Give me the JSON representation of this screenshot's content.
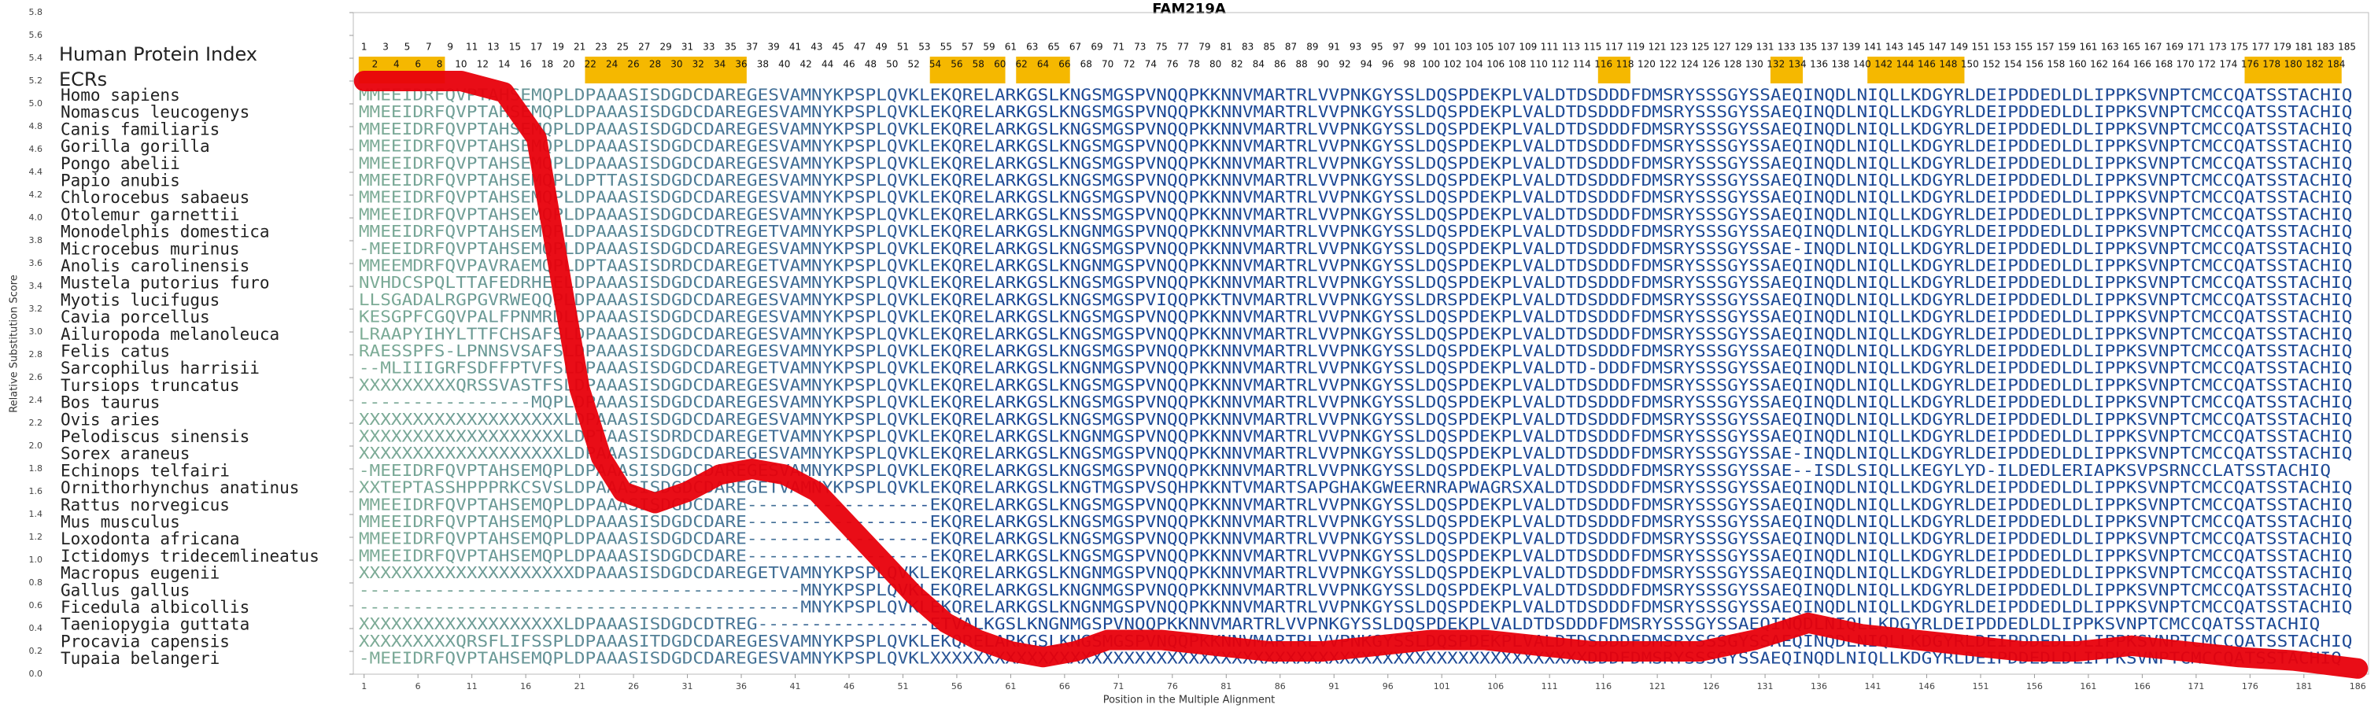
{
  "chart_data": {
    "type": "line",
    "title": "FAM219A",
    "index_title": "Human Protein Index",
    "ecr_title": "ECRs",
    "xlabel": "Position in the Multiple Alignment",
    "ylabel": "Relative Substitution Score",
    "xlim": [
      0,
      187
    ],
    "ylim": [
      0,
      5.8
    ],
    "xticks": [
      1,
      6,
      11,
      16,
      21,
      26,
      31,
      36,
      41,
      46,
      51,
      56,
      61,
      66,
      71,
      76,
      81,
      86,
      91,
      96,
      101,
      106,
      111,
      116,
      121,
      126,
      131,
      136,
      141,
      146,
      151,
      156,
      161,
      166,
      171,
      176,
      181,
      186
    ],
    "yticks": [
      {
        "value": 0,
        "label": "0.0"
      },
      {
        "value": 0.2,
        "label": "0.2"
      },
      {
        "value": 0.4,
        "label": "0.4"
      },
      {
        "value": 0.6,
        "label": "0.6"
      },
      {
        "value": 0.8,
        "label": "0.8"
      },
      {
        "value": 1,
        "label": "1.0"
      },
      {
        "value": 1.2,
        "label": "1.2"
      },
      {
        "value": 1.4,
        "label": "1.4"
      },
      {
        "value": 1.6,
        "label": "1.6"
      },
      {
        "value": 1.8,
        "label": "1.8"
      },
      {
        "value": 2,
        "label": "2.0"
      },
      {
        "value": 2.2,
        "label": "2.2"
      },
      {
        "value": 2.4,
        "label": "2.4"
      },
      {
        "value": 2.6,
        "label": "2.6"
      },
      {
        "value": 2.8,
        "label": "2.8"
      },
      {
        "value": 3,
        "label": "3.0"
      },
      {
        "value": 3.2,
        "label": "3.2"
      },
      {
        "value": 3.4,
        "label": "3.4"
      },
      {
        "value": 3.6,
        "label": "3.6"
      },
      {
        "value": 3.8,
        "label": "3.8"
      },
      {
        "value": 4,
        "label": "4.0"
      },
      {
        "value": 4.2,
        "label": "4.2"
      },
      {
        "value": 4.4,
        "label": "4.4"
      },
      {
        "value": 4.6,
        "label": "4.6"
      },
      {
        "value": 4.8,
        "label": "4.8"
      },
      {
        "value": 5,
        "label": "5.0"
      },
      {
        "value": 5.2,
        "label": "5.2"
      },
      {
        "value": 5.4,
        "label": "5.4"
      },
      {
        "value": 5.6,
        "label": "5.6"
      },
      {
        "value": 5.8,
        "label": "5.8"
      }
    ],
    "index_numbers": [
      1,
      2,
      3,
      4,
      5,
      6,
      7,
      8,
      9,
      10,
      11,
      12,
      13,
      14,
      15,
      16,
      17,
      18,
      19,
      20,
      21,
      22,
      23,
      24,
      25,
      26,
      27,
      28,
      29,
      30,
      31,
      32,
      33,
      34,
      35,
      36,
      37,
      38,
      39,
      40,
      41,
      42,
      43,
      44,
      45,
      46,
      47,
      48,
      49,
      50,
      51,
      52,
      53,
      54,
      55,
      56,
      57,
      58,
      59,
      60,
      61,
      62,
      63,
      64,
      65,
      66,
      67,
      68,
      69,
      70,
      71,
      72,
      73,
      74,
      75,
      76,
      77,
      78,
      79,
      80,
      81,
      82,
      83,
      84,
      85,
      86,
      87,
      88,
      89,
      90,
      91,
      92,
      93,
      94,
      95,
      96,
      97,
      98,
      99,
      100,
      101,
      102,
      103,
      104,
      105,
      106,
      107,
      108,
      109,
      110,
      111,
      112,
      113,
      114,
      115,
      116,
      117,
      118,
      119,
      120,
      121,
      122,
      123,
      124,
      125,
      126,
      127,
      128,
      129,
      130,
      131,
      132,
      133,
      134,
      135,
      136,
      137,
      138,
      139,
      140,
      141,
      142,
      143,
      144,
      145,
      146,
      147,
      148,
      149,
      150,
      151,
      152,
      153,
      154,
      155,
      156,
      157,
      158,
      159,
      160,
      161,
      162,
      163,
      164,
      165,
      166,
      167,
      168,
      169,
      170,
      171,
      172,
      173,
      174,
      175,
      176,
      177,
      178,
      179,
      180,
      181,
      182,
      183,
      184,
      185
    ],
    "ecrs": [
      [
        1,
        8
      ],
      [
        22,
        36
      ],
      [
        54,
        60
      ],
      [
        62,
        66
      ],
      [
        116,
        118
      ],
      [
        132,
        134
      ],
      [
        141,
        149
      ],
      [
        176,
        184
      ]
    ],
    "ecr_color": "#f5b800",
    "sequence_colors": [
      "#7fae96",
      "#1e4a96"
    ],
    "color": "#e8000b",
    "x": [
      1,
      5,
      10,
      14,
      17,
      19,
      21,
      23,
      25,
      28,
      31,
      34,
      37,
      40,
      43,
      46,
      49,
      52,
      55,
      58,
      61,
      64,
      67,
      70,
      75,
      80,
      85,
      90,
      95,
      100,
      105,
      110,
      115,
      120,
      125,
      130,
      135,
      140,
      145,
      150,
      155,
      160,
      165,
      170,
      175,
      180,
      186
    ],
    "values": [
      5.2,
      5.2,
      5.2,
      5.1,
      4.7,
      3.6,
      2.5,
      1.9,
      1.6,
      1.5,
      1.6,
      1.75,
      1.8,
      1.75,
      1.6,
      1.3,
      1.0,
      0.7,
      0.45,
      0.3,
      0.2,
      0.15,
      0.2,
      0.3,
      0.3,
      0.25,
      0.2,
      0.2,
      0.25,
      0.3,
      0.3,
      0.25,
      0.2,
      0.2,
      0.2,
      0.3,
      0.45,
      0.35,
      0.3,
      0.25,
      0.2,
      0.2,
      0.25,
      0.2,
      0.15,
      0.12,
      0.05
    ],
    "rows": [
      {
        "species": "Homo sapiens",
        "sequence": "MMEEIDRFQVPTAHSEMQPLDPAAASISDGDCDAREGESVAMNYKPSPLQVKLEKQRELARKGSLKNGSMGSPVNQQPKKNNVMARTRLVVPNKGYSSLDQSPDEKPLVALDTDSDDDFDMSRYSSSGYSSAEQINQDLNIQLLKDGYRLDEIPDDEDLDLIPPKSVNPTCMCCQATSSTACHIQ"
      },
      {
        "species": "Nomascus leucogenys",
        "sequence": "MMEEIDRFQVPTAHSEMQPLDPAAASISDGDCDAREGESVAMNYKPSPLQVKLEKQRELARKGSLKNGSMGSPVNQQPKKNNVMARTRLVVPNKGYSSLDQSPDEKPLVALDTDSDDDFDMSRYSSSGYSSAEQINQDLNIQLLKDGYRLDEIPDDEDLDLIPPKSVNPTCMCCQATSSTACHIQ"
      },
      {
        "species": "Canis familiaris",
        "sequence": "MMEEIDRFQVPTAHSEMQPLDPAAASISDGDCDAREGESVAMNYKPSPLQVKLEKQRELARKGSLKNGSMGSPVNQQPKKNNVMARTRLVVPNKGYSSLDQSPDEKPLVALDTDSDDDFDMSRYSSSGYSSAEQINQDLNIQLLKDGYRLDEIPDDEDLDLIPPKSVNPTCMCCQATSSTACHIQ"
      },
      {
        "species": "Gorilla gorilla",
        "sequence": "MMEEIDRFQVPTAHSEMQPLDPAAASISDGDCDAREGESVAMNYKPSPLQVKLEKQRELARKGSLKNGSMGSPVNQQPKKNNVMARTRLVVPNKGYSSLDQSPDEKPLVALDTDSDDDFDMSRYSSSGYSSAEQINQDLNIQLLKDGYRLDEIPDDEDLDLIPPKSVNPTCMCCQATSSTACHIQ"
      },
      {
        "species": "Pongo abelii",
        "sequence": "MMEEIDRFQVPTAHSEMQPLDPAAASISDGDCDAREGESVAMNYKPSPLQVKLEKQRELARKGSLKNGSMGSPVNQQPKKNNVMARTRLVVPNKGYSSLDQSPDEKPLVALDTDSDDDFDMSRYSSSGYSSAEQINQDLNIQLLKDGYRLDEIPDDEDLDLIPPKSVNPTCMCCQATSSTACHIQ"
      },
      {
        "species": "Papio anubis",
        "sequence": "MMEEIDRFQVPTAHSEMQPLDPTTASISDGDCDAREGESVAMNYKPSPLQVKLEKQRELARKGSLKNGSMGSPVNQQPKKNNVMARTRLVVPNKGYSSLDQSPDEKPLVALDTDSDDDFDMSRYSSSGYSSAEQINQDLNIQLLKDGYRLDEIPDDEDLDLIPPKSVNPTCMCCQATSSTACHIQ"
      },
      {
        "species": "Chlorocebus sabaeus",
        "sequence": "MMEEIDRFQVPTAHSEMQPLDPAAASISDGDCDAREGESVAMNYKPSPLQVKLEKQRELARKGSLKNGSMGSPVNQQPKKNNVMARTRLVVPNKGYSSLDQSPDEKPLVALDTDSDDDFDMSRYSSSGYSSAEQINQDLNIQLLKDGYRLDEIPDDEDLDLIPPKSVNPTCMCCQATSSTACHIQ"
      },
      {
        "species": "Otolemur garnettii",
        "sequence": "MMEEIDRFQVPTAHSEMQPLDPAAASISDGDCDAREGESVAMNYKPSPLQVKLEKQRELARKGSLKNSSMGSPVNQQPKKNNVMARTRLVVPNKGYSSLDQSPDEKPLVALDTDSDDDFDMSRYSSSGYSSAEQINQDLNIQLLKDGYRLDEIPDDEDLDLIPPKSVNPTCMCCQATSSTACHIQ"
      },
      {
        "species": "Monodelphis domestica",
        "sequence": "MMEEIDRFQVPTAHSEMQPLDPAAASISDGDCDTREGETVAMNYKPSPLQVKLEKQRELARKGSLKNGNMGSPVNQQPKKNNVMARTRLVVPNKGYSSLDQSPDEKPLVALDTDSDDDFDMSRYSSSGYSSAEQINQDLNIQLLKDGYRLDEIPDDEDLDLIPPKSVNPTCMCCQATSSTACHIQ"
      },
      {
        "species": "Microcebus murinus",
        "sequence": "-MEEIDRFQVPTAHSEMQPLDPAAASISDGDCDAREGESVAMNYKPSPLQVKLEKQRELARKGSLKNGSMGSPVNQQPKKNNVMARTRLVVPNKGYSSLDQSPDEKPLVALDTDSDDDFDMSRYSSSGYSSAE-INQDLNIQLLKDGYRLDEIPDDEDLDLIPPKSVNPTCMCCQATSSTACHIQ"
      },
      {
        "species": "Anolis carolinensis",
        "sequence": "MMEEMDRFQVPAVRAEMQPLDPTAASISDRDCDAREGETVAMNYKPSPLQVKLEKQRELARKGSLKNGNMGSPVNQQPKKNNVMARTRLVVPNKGYSSLDQSPDEKPLVALDTDSDDDFDMSRYSSSGYSSAEQINQDLNIQLLKDGYRLDEIPDDEDLDLIPPKSVNPTCMCCQATSSTACHIQ"
      },
      {
        "species": "Mustela putorius furo",
        "sequence": "NVHDCSPQLTTAFEDRHEELDPAAASISDGDCDAREGESVAMNYKPSPLQVKLEKQRELARKGSLKNGSMGSPVNQQPKKNNVMARTRLVVPNKGYSSLDQSPDEKPLVALDTDSDDDFDMSRYSSSGYSSAEQINQDLNIQLLKDGYRLDEIPDDEDLDLIPPKSVNPTCMCCQATSSTACHIQ"
      },
      {
        "species": "Myotis lucifugus",
        "sequence": "LLSGADALRGPGVRWEQQPLDPAAASISDGDCDAREGESVAMNYKPSPLQVKLEKQRELARKGSLKNGSMGSPVIQQPKKTNVMARTRLVVPNKGYSSLDRSPDEKPLVALDTDSDDDFDMSRYSSSGYSSAEQINQDLNIQLLKDGYRLDEIPDDEDLDLIPPKSVNPTCMCCQATSSTACHIQ"
      },
      {
        "species": "Cavia porcellus",
        "sequence": "KESGPFCGQVPALFPNMRDLDPAAASISDGDCDAREGESVAMNYKPSPLQVKLEKQRELARKGSLKNGSMGSPVNQQPKKNNVMARTRLVVPNKGYSSLDQSPDEKPLVALDTDSDDDFDMSRYSSSGYSSAEQINQDLNIQLLKDGYRLDEIPDDEDLDLIPPKSVNPTCMCCQATSSTACHIQ"
      },
      {
        "species": "Ailuropoda melanoleuca",
        "sequence": "LRAAPYIHYLTTFCHSAFSLDPAAASISDGDCDAREGESVAMNYKPSPLQVKLEKQRELARKGSLKNGSMGSPVNQQPKKNNVMARTRLVVPNKGYSSLDQSPDEKPLVALDTDSDDDFDMSRYSSSGYSSAEQINQDLNIQLLKDGYRLDEIPDDEDLDLIPPKSVNPTCMCCQATSSTACHIQ"
      },
      {
        "species": "Felis catus",
        "sequence": "RAESSPFS-LPNNSVSAFSLDPAAASISDGDCDAREGESVAMNYKPSPLQVKLEKQRELARKGSLKNGSMGSPVNQQPKKNNVMARTRLVVPNKGYSSLDQSPDEKPLVALDTDSDDDFDMSRYSSSGYSSAEQINQDLNIQLLKDGYRLDEIPDDEDLDLIPPKSVNPTCMCCQATSSTACHIQ"
      },
      {
        "species": "Sarcophilus harrisii",
        "sequence": "--MLIIIGRFSDFFPTVFSLDPAAASISDGDCDAREGETVAMNYKPSPLQVKLEKQRELARKGSLKNGNMGSPVNQQPKKNNVMARTRLVVPNKGYSSLDQSPDEKPLVALDTD-DDDFDMSRYSSSGYSSAEQINQDLNIQLLKDGYRLDEIPDDEDLDLIPPKSVNPTCMCCQATSSTACHIQ"
      },
      {
        "species": "Tursiops truncatus",
        "sequence": "XXXXXXXXXQRSSVASTFSLDPAAASISDGDCDAREGESVAMNYKPSPLQVKLEKQRELARKGSLKNGSMGSPVNQQPKKNNVMARTRLVVPNKGYSSLDQSPDEKPLVALDTDSDDDFDMSRYSSSGYSSAEQINQDLNIQLLKDGYRLDEIPDDEDLDLIPPKSVNPTCMCCQATSSTACHIQ"
      },
      {
        "species": "Bos taurus",
        "sequence": "----------------MQPLDPAAASISDGDCDAREGESVAMNYKPSPLQVKLEKQRELARKGSLKNGSMGSPVNQQPKKNNVMARTRLVVPNKGYSSLDQSPDEKPLVALDTDSDDDFDMSRYSSSGYSSAEQINQDLNIQLLKDGYRLDEIPDDEDLDLIPPKSVNPTCMCCQATSSTACHIQ"
      },
      {
        "species": "Ovis aries",
        "sequence": "XXXXXXXXXXXXXXXXXXXLDPAAASISDGDCDAREGESVAMNYKPSPLQVKLEKQRELARKGSLKNGSMGSPVNQQPKKNNVMARTRLVVPNKGYSSLDQSPDEKPLVALDTDSDDDFDMSRYSSSGYSSAEQINQDLNIQLLKDGYRLDEIPDDEDLDLIPPKSVNPTCMCCQATSSTACHIQ"
      },
      {
        "species": "Pelodiscus sinensis",
        "sequence": "XXXXXXXXXXXXXXXXXXXLDPTAASISDRDCDAREGETVAMNYKPSPLQVKLEKQRELARKGSLKNGNMGSPVNQQPKKNNVMARTRLVVPNKGYSSLDQSPDEKPLVALDTDSDDDFDMSRYSSSGYSSAEQINQDLNIQLLKDGYRLDEIPDDEDLDLIPPKSVNPTCMCCQATSSTACHIQ"
      },
      {
        "species": "Sorex araneus",
        "sequence": "XXXXXXXXXXXXXXXXXXXLDPAAASISDGDCDAREGESVAMNYKPSPLQVKLEKQRELARKGSLKNGSMGSPVNQQPKKNNVMARTRLVVPNKGYSSLDQSPDEKPLVALDTDSDDDFDMSRYSSSGYSSAE-INQDLNIQLLKDGYRLDEIPDDEDLDLIPPKSVNPTCMCCQATSSTACHIQ"
      },
      {
        "species": "Echinops telfairi",
        "sequence": "-MEEIDRFQVPTAHSEMQPLDPAAASISDGDCDAREGESVAMNYKPSPLQVKLEKQRELARKGSLKNGSMGSPVNQQPKKNNVMARTRLVVPNKGYSSLDQSPDEKPLVALDTDSDDDFDMSRYSSSGYSSAE--ISDLSIQLLKEGYLYD-ILDEDLERIAPKSVPSRNCCLATSSTACHIQ"
      },
      {
        "species": "Ornithorhynchus anatinus",
        "sequence": "XXTEPTASSHPPPRKCSVSLDPAAASISDGDCDAREGETVAMNYKPSPLQVKLEKQRELARKGSLKNGTMGSPVSQHPKKNTVMARTSAPGHAKGWEERNRAPWAGRSXALDTDSDDDFDMSRYSSSGYSSAEQINQDLNIQLLKDGYRLDEIPDDEDLDLIPPKSVNPTCMCCQATSSTACHIQ"
      },
      {
        "species": "Rattus norvegicus",
        "sequence": "MMEEIDRFQVPTAHSEMQPLDPAAASISDGDCDARE-----------------EKQRELARKGSLKNGSMGSPVNQQPKKNNVMARTRLVVPNKGYSSLDQSPDEKPLVALDTDSDDDFDMSRYSSSGYSSAEQINQDLNIQLLKDGYRLDEIPDDEDLDLIPPKSVNPTCMCCQATSSTACHIQ"
      },
      {
        "species": "Mus musculus",
        "sequence": "MMEEIDRFQVPTAHSEMQPLDPAAASISDGDCDARE-----------------EKQRELARKGSLKNGSMGSPVNQQPKKNNVMARTRLVVPNKGYSSLDQSPDEKPLVALDTDSDDDFDMSRYSSSGYSSAEQINQDLNIQLLKDGYRLDEIPDDEDLDLIPPKSVNPTCMCCQATSSTACHIQ"
      },
      {
        "species": "Loxodonta africana",
        "sequence": "MMEEIDRFQVPTAHSEMQPLDPAAASISDGDCDARE-----------------EKQRELARKGSLKNGSMGSPVNQQPKKNNVMARTRLVVPNKGYSSLDQSPDEKPLVALDTDSDDDFDMSRYSSSGYSSAEQINQDLNIQLLKDGYRLDEIPDDEDLDLIPPKSVNPTCMCCQATSSTACHIQ"
      },
      {
        "species": "Ictidomys tridecemlineatus",
        "sequence": "MMEEIDRFQVPTAHSEMQPLDPAAASISDGDCDARE-----------------EKQRELARKGSLKNGSMGSPVNQQPKKNNVMARTRLVVPNKGYSSLDQSPDEKPLVALDTDSDDDFDMSRYSSSGYSSAEQINQDLNIQLLKDGYRLDEIPDDEDLDLIPPKSVNPTCMCCQATSSTACHIQ"
      },
      {
        "species": "Macropus eugenii",
        "sequence": "XXXXXXXXXXXXXXXXXXXXDPAAASISDGDCDAREGETVAMNYKPSPLQVKLEKQRELARKGSLKNGNMGSPVNQQPKKNNVMARTRLVVPNKGYSSLDQSPDEKPLVALDTDSDDDFDMSRYSSSGYSSAEQINQDLNIQLLKDGYRLDEIPDDEDLDLIPPKSVNPTCMCCQATSSTACHIQ"
      },
      {
        "species": "Gallus gallus",
        "sequence": "-----------------------------------------MNYKPSPLQVKLEKQRELARKGSLKNGNMGSPVNQQPKKNNVMARTRLVVPNKGYSSLDQSPDEKPLVALDTDSDDDFDMSRYSSSGYSSAEQINQDLNIQLLKDGYRLDEIPDDEDLDLIPPKSVNPTCMCCQATSSTACHIQ"
      },
      {
        "species": "Ficedula albicollis",
        "sequence": "-----------------------------------------MNYKPSPLQVKLEKQRELARKGSLKNGNMGSPVNQQPKKNNVMARTRLVVPNKGYSSLDQSPDEKPLVALDTDSDDDFDMSRYSSSGYSSAEQINQDLNIQLLKDGYRLDEIPDDEDLDLIPPKSVNPTCMCCQATSSTACHIQ"
      },
      {
        "species": "Taeniopygia guttata",
        "sequence": "XXXXXXXXXXXXXXXXXXXLDPAAASISDGDCDTREG----------------ETVALKGSLKNGNMGSPVNQQPKKNNVMARTRLVVPNKGYSSLDQSPDEKPLVALDTDSDDDFDMSRYSSSGYSSAEQINQDLNIQLLKDGYRLDEIPDDEDLDLIPPKSVNPTCMCCQATSSTACHIQ"
      },
      {
        "species": "Procavia capensis",
        "sequence": "XXXXXXXXXQRSFLIFSSPLDPAAASITDGDCDAREGESVAMNYKPSPLQVKLEKQRELARKGSLKNGSMGSPVNQQPKKNNVMARTRLVVPNKGYSSLDQSPDEKPLVALDTDSDDDFDMSRYSSSGYSSAEQINQDLNIQLLKDGYRLDEIPDDEDLDLIPPKSVNPTCMCCQATSSTACHIQ"
      },
      {
        "species": "Tupaia belangeri",
        "sequence": "-MEEIDRFQVPTAHSEMQPLDPAAASISDGDCDAREGESVAMNYKPSPLQVKLXXXXXXXXXXXXXXXXXXXXXXXXXXXXXXXXXXXXXXXXXXXXXXXXXXXXXXXXXXXXXDDDFDMSRYSSSGYSSAEQINQDLNIQLLKDGYRLDEIPDDEDLDLIPPKSVNPTCMCCQATSSTACHIQ"
      }
    ]
  }
}
